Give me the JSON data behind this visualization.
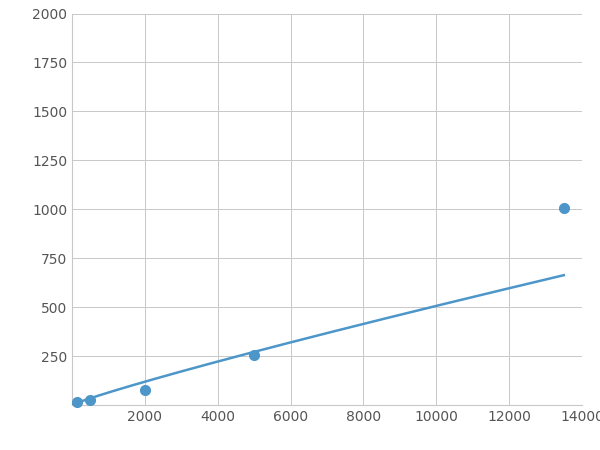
{
  "x_points": [
    125,
    500,
    2000,
    5000,
    13500
  ],
  "y_points": [
    15,
    25,
    75,
    255,
    1005
  ],
  "line_color": "#4d96c9",
  "marker_color": "#4d96c9",
  "marker_size": 7,
  "line_width": 1.8,
  "xlim": [
    0,
    14000
  ],
  "ylim": [
    0,
    2000
  ],
  "xticks": [
    0,
    2000,
    4000,
    6000,
    8000,
    10000,
    12000,
    14000
  ],
  "yticks": [
    0,
    250,
    500,
    750,
    1000,
    1250,
    1500,
    1750,
    2000
  ],
  "xtick_labels": [
    "",
    "2000",
    "4000",
    "6000",
    "8000",
    "10000",
    "12000",
    "14000"
  ],
  "ytick_labels": [
    "",
    "250",
    "500",
    "750",
    "1000",
    "1250",
    "1500",
    "1750",
    "2000"
  ],
  "background_color": "#ffffff",
  "grid_color": "#c8c8c8",
  "grid_alpha": 1.0,
  "tick_fontsize": 10,
  "tick_color": "#555555"
}
